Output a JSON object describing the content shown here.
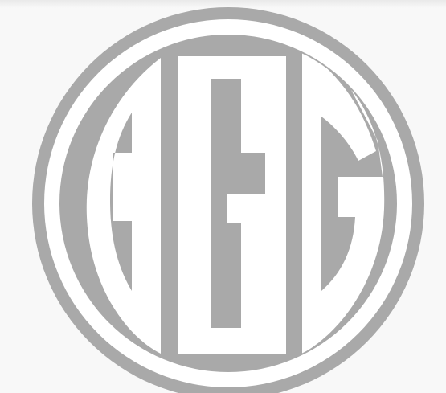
{
  "logo": {
    "name": "GGG monogram",
    "text": "GGG",
    "colors": {
      "mark": "#a9a9a9",
      "background": "#f8f8f8",
      "inner": "#ffffff"
    }
  }
}
